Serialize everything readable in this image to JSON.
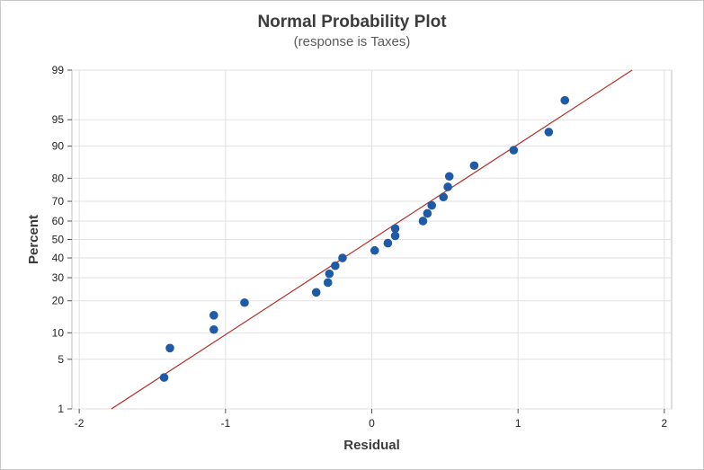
{
  "chart_data": {
    "type": "scatter",
    "title": "Normal Probability Plot",
    "subtitle": "(response is Taxes)",
    "xlabel": "Residual",
    "ylabel": "Percent",
    "xlim": [
      -2.05,
      2.05
    ],
    "x_ticks": [
      -2,
      -1,
      0,
      1,
      2
    ],
    "x_tick_labels": [
      "-2",
      "-1",
      "0",
      "1",
      "2"
    ],
    "y_scale": "normal-probability",
    "ylim": [
      1,
      99
    ],
    "y_ticks": [
      1,
      5,
      10,
      20,
      30,
      40,
      50,
      60,
      70,
      80,
      90,
      95,
      99
    ],
    "y_tick_labels": [
      "1",
      "5",
      "10",
      "20",
      "30",
      "40",
      "50",
      "60",
      "70",
      "80",
      "90",
      "95",
      "99"
    ],
    "grid": true,
    "marker_color": "#1f5aa6",
    "fit_line_color": "#b4302a",
    "fit_line": {
      "x": [
        -1.78,
        1.78
      ],
      "y": [
        1,
        99
      ]
    },
    "points": [
      {
        "x": -1.42,
        "y": 2.9
      },
      {
        "x": -1.38,
        "y": 6.8
      },
      {
        "x": -1.08,
        "y": 10.8
      },
      {
        "x": -1.08,
        "y": 14.9
      },
      {
        "x": -0.87,
        "y": 19.3
      },
      {
        "x": -0.38,
        "y": 23.4
      },
      {
        "x": -0.3,
        "y": 27.7
      },
      {
        "x": -0.29,
        "y": 31.9
      },
      {
        "x": -0.25,
        "y": 35.9
      },
      {
        "x": -0.2,
        "y": 40.0
      },
      {
        "x": 0.02,
        "y": 44.0
      },
      {
        "x": 0.11,
        "y": 48.0
      },
      {
        "x": 0.16,
        "y": 52.0
      },
      {
        "x": 0.16,
        "y": 56.0
      },
      {
        "x": 0.35,
        "y": 60.0
      },
      {
        "x": 0.38,
        "y": 64.0
      },
      {
        "x": 0.41,
        "y": 68.0
      },
      {
        "x": 0.49,
        "y": 72.0
      },
      {
        "x": 0.52,
        "y": 76.5
      },
      {
        "x": 0.53,
        "y": 80.7
      },
      {
        "x": 0.7,
        "y": 84.5
      },
      {
        "x": 0.97,
        "y": 89.0
      },
      {
        "x": 1.21,
        "y": 93.0
      },
      {
        "x": 1.32,
        "y": 97.2
      }
    ]
  }
}
